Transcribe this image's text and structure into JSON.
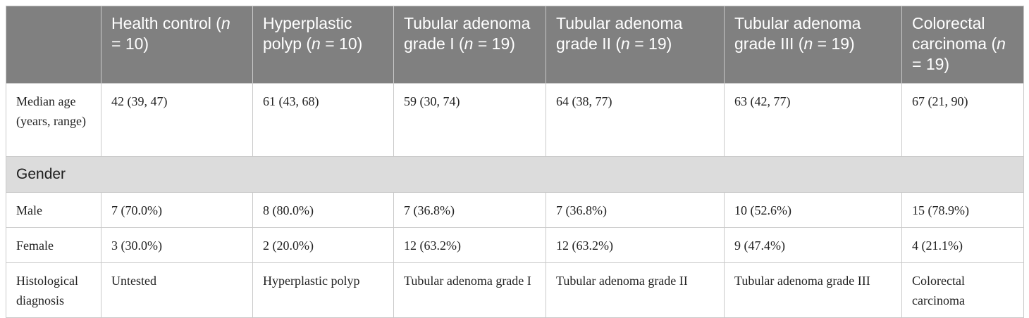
{
  "header": {
    "blank": "",
    "cols": [
      {
        "pre": "Health control (",
        "n": "n",
        "post": " = 10)"
      },
      {
        "pre": "Hyperplastic polyp (",
        "n": "n",
        "post": " = 10)"
      },
      {
        "pre": "Tubular adenoma grade I (",
        "n": "n",
        "post": " = 19)"
      },
      {
        "pre": "Tubular adenoma grade II (",
        "n": "n",
        "post": " = 19)"
      },
      {
        "pre": "Tubular adenoma grade III (",
        "n": "n",
        "post": " = 19)"
      },
      {
        "pre": "Colorectal carcinoma (",
        "n": "n",
        "post": " = 19)"
      }
    ]
  },
  "rows": {
    "age": {
      "label": "Median age (years, range)",
      "cells": [
        "42 (39, 47)",
        "61 (43, 68)",
        "59 (30, 74)",
        "64 (38, 77)",
        "63 (42, 77)",
        "67 (21, 90)"
      ]
    },
    "gender_section": "Gender",
    "male": {
      "label": "Male",
      "cells": [
        "7 (70.0%)",
        "8 (80.0%)",
        "7 (36.8%)",
        "7 (36.8%)",
        "10 (52.6%)",
        "15 (78.9%)"
      ]
    },
    "female": {
      "label": "Female",
      "cells": [
        "3 (30.0%)",
        "2 (20.0%)",
        "12 (63.2%)",
        "12 (63.2%)",
        "9 (47.4%)",
        "4 (21.1%)"
      ]
    },
    "histology": {
      "label": "Histological diagnosis",
      "cells": [
        "Untested",
        "Hyperplastic polyp",
        "Tubular adenoma grade I",
        "Tubular adenoma grade II",
        "Tubular adenoma grade III",
        "Colorectal carcinoma"
      ]
    }
  },
  "colors": {
    "header_bg": "#808080",
    "section_bg": "#dcdcdc",
    "border": "#c9c9c9"
  }
}
